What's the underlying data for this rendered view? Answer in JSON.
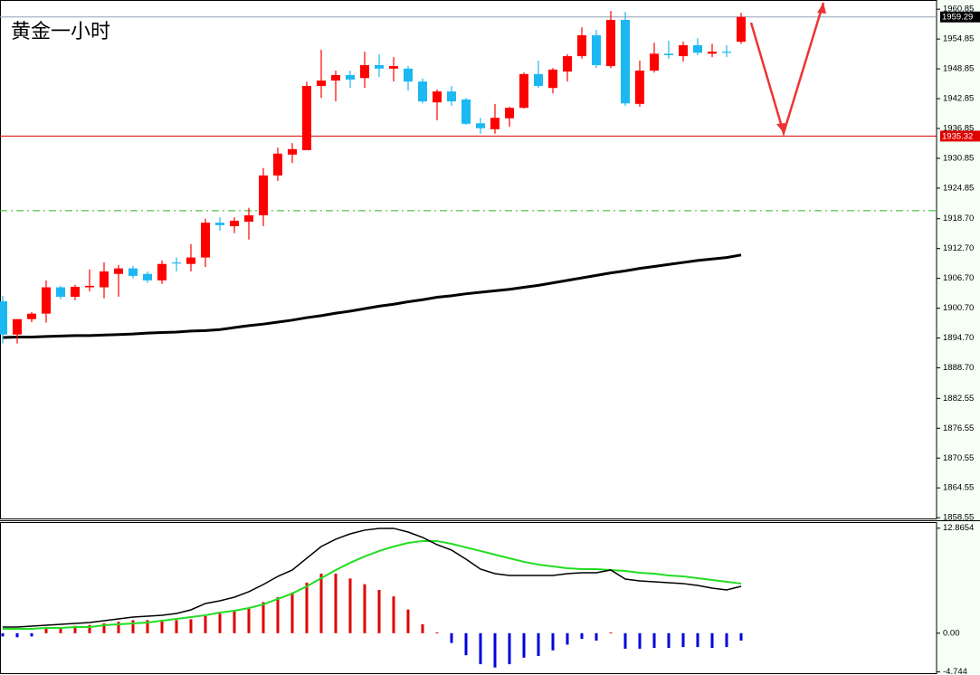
{
  "chart_data": [
    {
      "type": "candlestick",
      "title": "黄金一小时",
      "up_color": "#ff0000",
      "down_color": "#1cb8f2",
      "open": [
        1902.1,
        1895.4,
        1898.5,
        1899.6,
        1904.9,
        1903.0,
        1904.9,
        1904.9,
        1907.6,
        1908.7,
        1907.6,
        1906.3,
        1909.9,
        1909.6,
        1910.9,
        1917.9,
        1917.2,
        1918.1,
        1919.4,
        1927.4,
        1931.6,
        1932.5,
        1945.4,
        1946.5,
        1947.6,
        1947.0,
        1949.6,
        1948.9,
        1948.9,
        1946.3,
        1942.1,
        1944.3,
        1942.7,
        1937.9,
        1936.7,
        1938.9,
        1941.0,
        1947.8,
        1945.0,
        1948.3,
        1951.4,
        1955.6,
        1949.4,
        1958.7,
        1941.8,
        1948.5,
        1951.9,
        1951.4,
        1953.6,
        1951.9,
        1952.3,
        1954.3
      ],
      "high": [
        1903.2,
        1898.5,
        1899.9,
        1906.3,
        1905.2,
        1905.4,
        1908.5,
        1909.9,
        1909.4,
        1909.2,
        1908.1,
        1910.3,
        1910.9,
        1913.6,
        1918.7,
        1919.0,
        1919.0,
        1920.9,
        1928.9,
        1933.0,
        1933.9,
        1946.3,
        1952.7,
        1948.5,
        1948.5,
        1952.3,
        1951.8,
        1951.2,
        1949.4,
        1946.9,
        1944.7,
        1945.4,
        1943.0,
        1939.0,
        1941.8,
        1941.2,
        1948.1,
        1950.5,
        1949.0,
        1951.8,
        1957.2,
        1956.7,
        1960.5,
        1960.3,
        1950.5,
        1954.1,
        1954.5,
        1954.3,
        1955.0,
        1953.9,
        1953.6,
        1960.1
      ],
      "low": [
        1893.6,
        1893.6,
        1897.9,
        1897.8,
        1902.5,
        1902.3,
        1904.1,
        1902.7,
        1903.0,
        1906.7,
        1905.8,
        1905.6,
        1908.1,
        1908.1,
        1909.0,
        1916.3,
        1915.8,
        1914.5,
        1917.2,
        1926.3,
        1929.9,
        1932.5,
        1943.0,
        1942.3,
        1945.0,
        1945.0,
        1947.2,
        1946.3,
        1944.5,
        1941.9,
        1938.5,
        1941.4,
        1937.6,
        1935.8,
        1935.8,
        1937.2,
        1940.9,
        1945.0,
        1943.9,
        1946.3,
        1950.9,
        1949.0,
        1949.0,
        1941.4,
        1941.2,
        1948.1,
        1950.9,
        1950.3,
        1951.6,
        1951.2,
        1951.2,
        1953.9
      ],
      "close": [
        1895.4,
        1898.5,
        1899.6,
        1904.9,
        1903.0,
        1905.0,
        1905.2,
        1908.1,
        1908.7,
        1907.2,
        1906.3,
        1909.6,
        1909.8,
        1910.9,
        1917.9,
        1917.4,
        1918.3,
        1919.4,
        1927.4,
        1931.8,
        1932.7,
        1945.4,
        1946.5,
        1947.6,
        1946.7,
        1949.6,
        1948.9,
        1949.4,
        1946.3,
        1942.3,
        1944.3,
        1942.3,
        1937.8,
        1936.9,
        1939.0,
        1941.0,
        1947.8,
        1945.4,
        1948.7,
        1951.4,
        1955.6,
        1949.6,
        1958.7,
        1941.9,
        1948.5,
        1951.9,
        1951.6,
        1953.6,
        1952.1,
        1952.3,
        1952.1,
        1959.3
      ],
      "ma": {
        "color": "#000000",
        "values": [
          1894.8,
          1894.9,
          1894.9,
          1895.0,
          1895.1,
          1895.2,
          1895.2,
          1895.3,
          1895.4,
          1895.5,
          1895.7,
          1895.8,
          1895.9,
          1896.1,
          1896.2,
          1896.4,
          1896.8,
          1897.2,
          1897.5,
          1897.9,
          1898.3,
          1898.8,
          1899.2,
          1899.7,
          1900.1,
          1900.6,
          1901.1,
          1901.5,
          1902.0,
          1902.4,
          1902.9,
          1903.2,
          1903.6,
          1903.9,
          1904.2,
          1904.5,
          1904.9,
          1905.3,
          1905.8,
          1906.3,
          1906.8,
          1907.3,
          1907.8,
          1908.2,
          1908.7,
          1909.1,
          1909.5,
          1909.9,
          1910.3,
          1910.6,
          1910.9,
          1911.4
        ]
      },
      "price_lines": [
        {
          "value": 1959.29,
          "color": "#8fa0b4",
          "tag_color": "#000000"
        },
        {
          "value": 1935.32,
          "color": "#e00000",
          "tag_color": "#e00000"
        }
      ],
      "levels": [
        {
          "value": 1920.3,
          "color": "#22bb22"
        }
      ],
      "ylim": [
        1858.4,
        1962.7
      ],
      "yticks": [
        1960.85,
        1954.85,
        1948.85,
        1942.85,
        1936.85,
        1930.85,
        1924.85,
        {
          "value": 1918.7,
          "label": "1918.70"
        },
        {
          "value": 1912.7,
          "label": "1912.70"
        },
        {
          "value": 1906.7,
          "label": "1906.70"
        },
        {
          "value": 1900.7,
          "label": "1900.70"
        },
        {
          "value": 1894.7,
          "label": "1894.70"
        },
        {
          "value": 1888.7,
          "label": "1888.70"
        },
        1882.55,
        1876.55,
        1870.55,
        1864.55,
        1858.55
      ]
    },
    {
      "type": "macd",
      "histogram": {
        "up_color": "#e00000",
        "down_color": "#0000dd",
        "values": [
          -0.4,
          -0.5,
          -0.4,
          0.6,
          0.7,
          0.9,
          1.0,
          1.2,
          1.4,
          1.6,
          1.6,
          1.6,
          1.6,
          1.7,
          2.1,
          2.4,
          2.8,
          3.0,
          3.8,
          4.4,
          5.0,
          6.2,
          7.3,
          7.3,
          6.7,
          6.0,
          5.3,
          4.5,
          2.9,
          1.1,
          0.1,
          -1.2,
          -2.7,
          -3.8,
          -4.2,
          -3.8,
          -3.0,
          -2.8,
          -2.1,
          -1.4,
          -0.7,
          -0.9,
          0.1,
          -1.9,
          -1.9,
          -1.8,
          -1.8,
          -1.7,
          -1.7,
          -1.8,
          -1.7,
          -0.9
        ]
      },
      "macd": {
        "color": "#000000",
        "values": [
          0.75,
          0.75,
          0.86,
          0.98,
          1.09,
          1.2,
          1.31,
          1.53,
          1.75,
          1.97,
          2.08,
          2.19,
          2.42,
          2.86,
          3.64,
          3.97,
          4.41,
          5.08,
          5.96,
          6.96,
          7.74,
          9.18,
          10.62,
          11.51,
          12.17,
          12.62,
          12.84,
          12.84,
          12.39,
          11.73,
          10.84,
          10.18,
          9.07,
          7.85,
          7.29,
          7.07,
          7.07,
          7.07,
          7.07,
          7.29,
          7.41,
          7.41,
          7.74,
          6.63,
          6.41,
          6.3,
          6.19,
          6.08,
          5.85,
          5.52,
          5.3,
          5.74
        ]
      },
      "signal": {
        "color": "#22dd22",
        "values": [
          0.53,
          0.53,
          0.53,
          0.64,
          0.64,
          0.75,
          0.75,
          0.98,
          1.09,
          1.2,
          1.31,
          1.53,
          1.75,
          1.97,
          2.2,
          2.53,
          2.75,
          3.08,
          3.53,
          4.19,
          4.86,
          5.74,
          6.74,
          7.74,
          8.63,
          9.4,
          10.07,
          10.62,
          11.06,
          11.29,
          11.29,
          10.95,
          10.51,
          10.07,
          9.62,
          9.18,
          8.74,
          8.4,
          8.18,
          7.96,
          7.85,
          7.85,
          7.74,
          7.63,
          7.41,
          7.29,
          7.07,
          6.96,
          6.74,
          6.52,
          6.3,
          6.08
        ]
      },
      "ylim": [
        -4.9,
        13.5
      ],
      "yticks": [
        12.8654,
        {
          "value": 0,
          "label": "0.00"
        },
        -4.744
      ]
    }
  ]
}
